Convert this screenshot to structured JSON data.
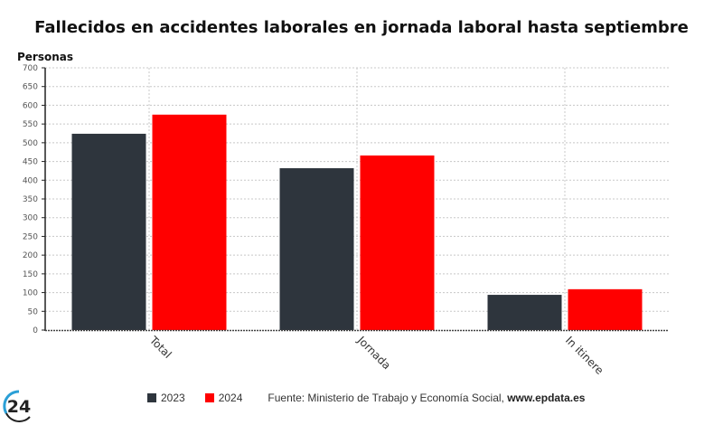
{
  "chart_data": {
    "type": "bar",
    "title": "Fallecidos en accidentes laborales en jornada laboral hasta septiembre",
    "xlabel": "",
    "ylabel": "Personas",
    "ylim": [
      0,
      700
    ],
    "yticks": [
      0,
      50,
      100,
      150,
      200,
      250,
      300,
      350,
      400,
      450,
      500,
      550,
      600,
      650,
      700
    ],
    "grid": true,
    "categories": [
      "Total",
      "Jornada",
      "In itinere"
    ],
    "series": [
      {
        "name": "2023",
        "color": "#2e353d",
        "values": [
          524,
          432,
          94
        ]
      },
      {
        "name": "2024",
        "color": "#ff0000",
        "values": [
          575,
          466,
          109
        ]
      }
    ],
    "legend_position": "bottom"
  },
  "footer": {
    "source_prefix": "Fuente: Ministerio de Trabajo y Economía Social, ",
    "source_site": "www.epdata.es",
    "logo_text": "24"
  }
}
